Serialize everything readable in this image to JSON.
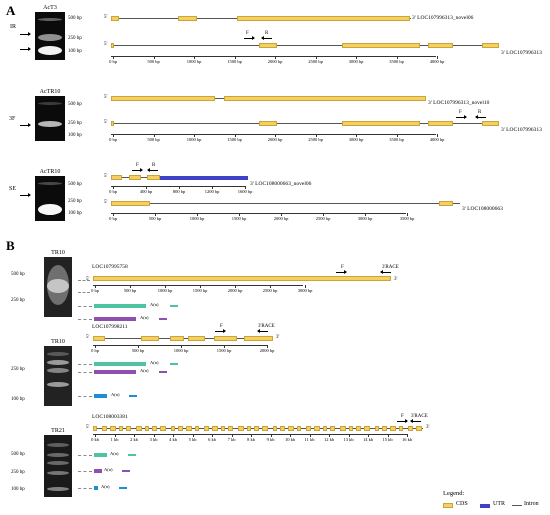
{
  "panels": {
    "a": "A",
    "b": "B"
  },
  "colors": {
    "cds": "#f5d061",
    "utr": "#3f42c8",
    "intron": "#555555",
    "teal": "#4fc3a1",
    "purple": "#8e4fb0",
    "blue": "#1e8fd4"
  },
  "panelA": {
    "row1": {
      "gel_title": "AcT3",
      "side_label": "IR",
      "sizes": [
        "500 bp",
        "250 bp",
        "100 bp"
      ],
      "gene_top": "LOC107996313_novel06",
      "gene_bottom": "LOC107996313",
      "primer_f": "F",
      "primer_r": "R",
      "ticks": [
        "0 bp",
        "500 bp",
        "1000 bp",
        "1500 bp",
        "2000 bp",
        "2500 bp",
        "3000 bp",
        "3500 bp",
        "4000 bp"
      ]
    },
    "row2": {
      "gel_title": "AcTR10",
      "side_label": "3F",
      "sizes": [
        "500 bp",
        "250 bp",
        "100 bp"
      ],
      "gene_top": "LOC107996313_novel10",
      "gene_bottom": "LOC107996313",
      "primer_f": "F",
      "primer_r": "R",
      "ticks": [
        "0 bp",
        "500 bp",
        "1000 bp",
        "1500 bp",
        "2000 bp",
        "2500 bp",
        "3000 bp",
        "3500 bp",
        "4000 bp"
      ]
    },
    "row3": {
      "gel_title": "AcTR10",
      "side_label": "SE",
      "sizes": [
        "500 bp",
        "250 bp",
        "100 bp"
      ],
      "gene_top": "LOC108000663_novel06",
      "gene_bottom": "LOC108000663",
      "primer_f": "F",
      "primer_r": "R",
      "ticks_top": [
        "0 bp",
        "400 bp",
        "800 bp",
        "1200 bp",
        "1600 bp"
      ],
      "ticks_bottom": [
        "0 bp",
        "500 bp",
        "1000 bp",
        "1500 bp",
        "2000 bp",
        "2500 bp",
        "3000 bp",
        "3500 bp"
      ]
    },
    "five": "5'",
    "three": "3'"
  },
  "panelB": {
    "row1": {
      "gel_title": "TR10",
      "sizes": [
        "500 bp",
        "250 bp"
      ],
      "gene": "LOC107995758",
      "primer_f": "F",
      "race": "3'RACE",
      "polyA": "A(n)",
      "ticks": [
        "0 bp",
        "500 bp",
        "1000 bp",
        "1500 bp",
        "2000 bp",
        "2500 bp",
        "3000 bp"
      ]
    },
    "row2": {
      "gel_title": "TR10",
      "sizes": [
        "250 bp",
        "100 bp"
      ],
      "gene": "LOC107998211",
      "primer_f": "F",
      "race": "3'RACE",
      "polyA": "A(n)",
      "ticks": [
        "0 bp",
        "500 bp",
        "1000 bp",
        "1500 bp",
        "2000 bp"
      ]
    },
    "row3": {
      "gel_title": "TR21",
      "sizes": [
        "500 bp",
        "250 bp",
        "100 bp"
      ],
      "gene": "LOC108003381",
      "primer_f": "F",
      "race": "3'RACE",
      "polyA": "A(n)",
      "ticks": [
        "0 kb",
        "1 kb",
        "2 kb",
        "3 kb",
        "4 kb",
        "5 kb",
        "6 kb",
        "7 kb",
        "8 kb",
        "9 kb",
        "10 kb",
        "11 kb",
        "12 kb",
        "13 kb",
        "14 kb",
        "15 kb",
        "16 kb"
      ]
    }
  },
  "legend": {
    "title": "Legend:",
    "cds": "CDS",
    "utr": "UTR",
    "intron": "Intron"
  }
}
